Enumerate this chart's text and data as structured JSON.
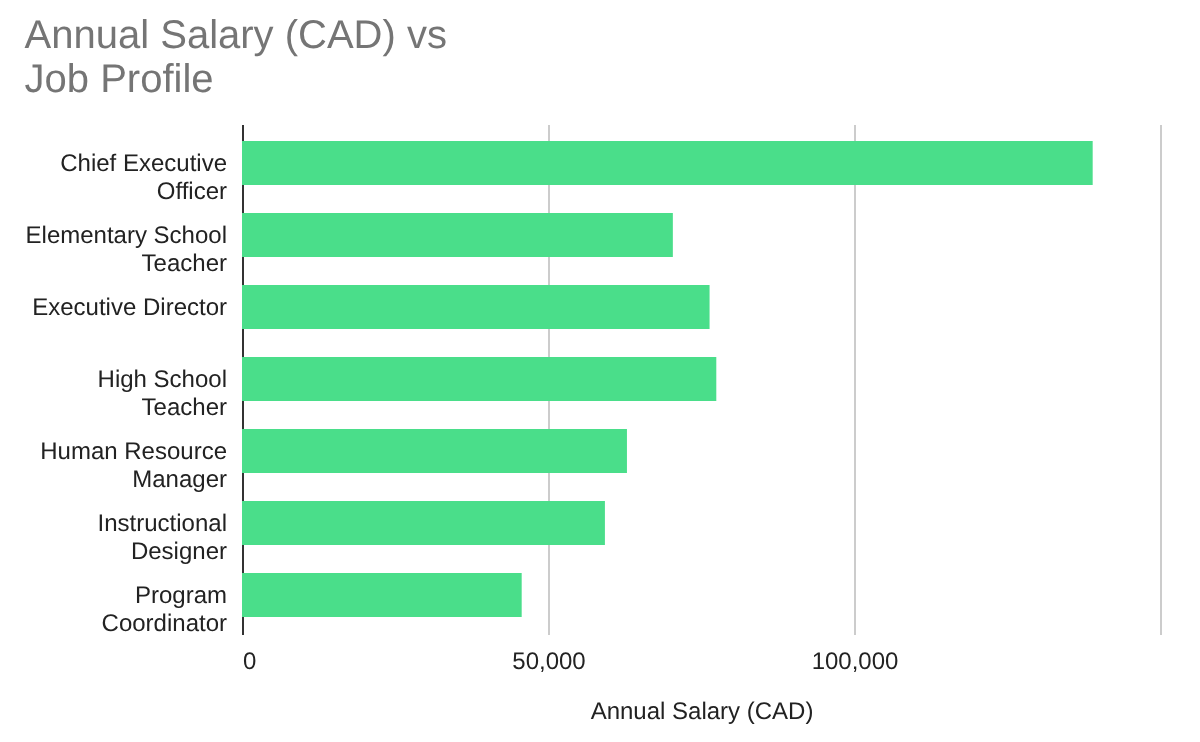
{
  "chart_data": {
    "type": "bar",
    "orientation": "horizontal",
    "title": "Annual Salary (CAD) vs Job Profile",
    "xlabel": "Annual Salary (CAD)",
    "categories": [
      "Chief Executive Officer",
      "Elementary School Teacher",
      "Executive Director",
      "High School Teacher",
      "Human Resource Manager",
      "Instructional Designer",
      "Program Coordinator"
    ],
    "values": [
      139000,
      70400,
      76400,
      77500,
      62900,
      59300,
      45700
    ],
    "color": "#4ade8a",
    "xlim": [
      0,
      150000
    ],
    "xticks": [
      0,
      {
        "value": 50000,
        "label": "50,000"
      },
      {
        "value": 100000,
        "label": "100,000"
      },
      {
        "value": 150000,
        "label": null
      }
    ],
    "grid": "x"
  }
}
